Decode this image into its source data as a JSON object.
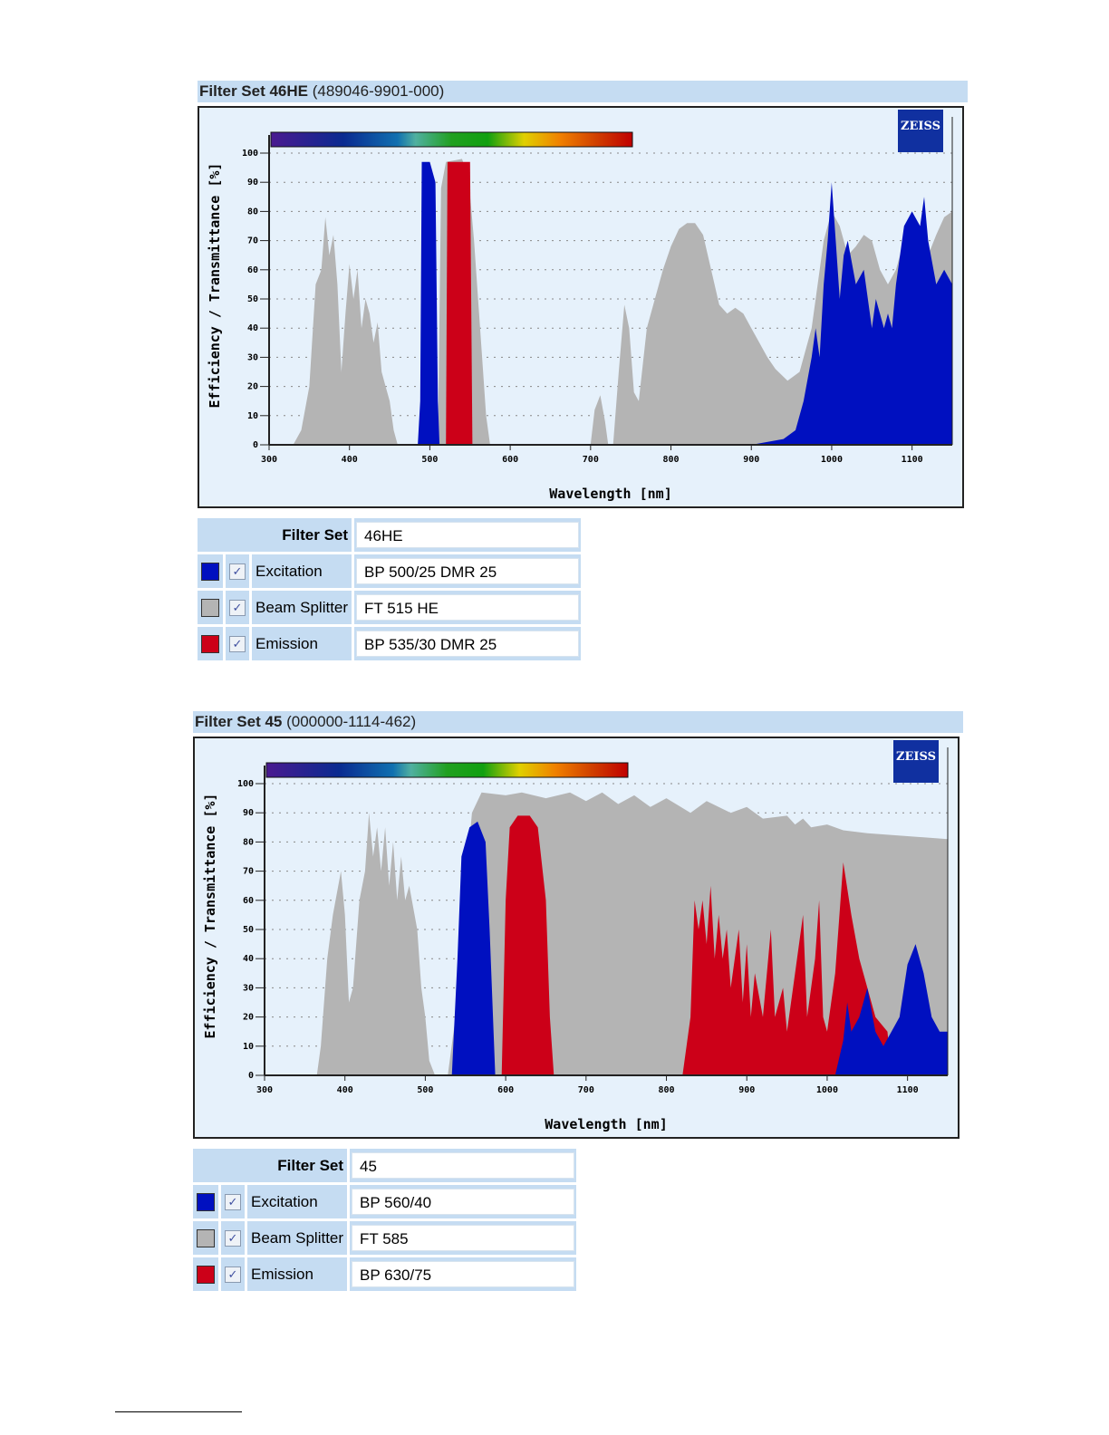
{
  "chart_data": [
    {
      "type": "area",
      "title_bold": "Filter Set 46HE",
      "title_rest": "(489046-9901-000)",
      "xlabel": "Wavelength [nm]",
      "ylabel": "Efficiency / Transmittance [%]",
      "xlim": [
        300,
        1150
      ],
      "ylim": [
        0,
        100
      ],
      "xticks": [
        300,
        400,
        500,
        600,
        700,
        800,
        900,
        1000,
        1100
      ],
      "yticks": [
        0,
        10,
        20,
        30,
        40,
        50,
        60,
        70,
        80,
        90,
        100
      ],
      "grid": true,
      "logo": "ZEISS",
      "series": [
        {
          "name": "Beam Splitter",
          "color": "#b4b4b4",
          "points": [
            [
              330,
              0
            ],
            [
              340,
              5
            ],
            [
              350,
              20
            ],
            [
              358,
              55
            ],
            [
              365,
              60
            ],
            [
              370,
              78
            ],
            [
              375,
              65
            ],
            [
              380,
              72
            ],
            [
              385,
              55
            ],
            [
              390,
              25
            ],
            [
              395,
              45
            ],
            [
              400,
              62
            ],
            [
              405,
              50
            ],
            [
              410,
              60
            ],
            [
              415,
              40
            ],
            [
              420,
              50
            ],
            [
              425,
              45
            ],
            [
              430,
              35
            ],
            [
              435,
              42
            ],
            [
              440,
              25
            ],
            [
              445,
              20
            ],
            [
              450,
              15
            ],
            [
              455,
              5
            ],
            [
              460,
              0
            ],
            [
              510,
              0
            ],
            [
              514,
              88
            ],
            [
              520,
              97
            ],
            [
              540,
              98
            ],
            [
              548,
              92
            ],
            [
              555,
              70
            ],
            [
              565,
              30
            ],
            [
              570,
              10
            ],
            [
              575,
              0
            ],
            [
              700,
              0
            ],
            [
              705,
              12
            ],
            [
              712,
              17
            ],
            [
              718,
              8
            ],
            [
              722,
              0
            ],
            [
              728,
              0
            ],
            [
              735,
              25
            ],
            [
              742,
              48
            ],
            [
              748,
              40
            ],
            [
              754,
              18
            ],
            [
              760,
              15
            ],
            [
              770,
              40
            ],
            [
              780,
              50
            ],
            [
              790,
              60
            ],
            [
              800,
              68
            ],
            [
              810,
              74
            ],
            [
              820,
              76
            ],
            [
              830,
              76
            ],
            [
              840,
              72
            ],
            [
              850,
              60
            ],
            [
              860,
              48
            ],
            [
              870,
              45
            ],
            [
              880,
              47
            ],
            [
              890,
              45
            ],
            [
              900,
              40
            ],
            [
              910,
              35
            ],
            [
              920,
              30
            ],
            [
              930,
              26
            ],
            [
              945,
              22
            ],
            [
              960,
              25
            ],
            [
              975,
              40
            ],
            [
              990,
              70
            ],
            [
              1000,
              80
            ],
            [
              1010,
              75
            ],
            [
              1020,
              65
            ],
            [
              1030,
              68
            ],
            [
              1040,
              72
            ],
            [
              1050,
              70
            ],
            [
              1060,
              60
            ],
            [
              1070,
              55
            ],
            [
              1080,
              60
            ],
            [
              1090,
              70
            ],
            [
              1100,
              70
            ],
            [
              1110,
              60
            ],
            [
              1120,
              65
            ],
            [
              1130,
              72
            ],
            [
              1140,
              78
            ],
            [
              1150,
              80
            ],
            [
              1150,
              0
            ]
          ]
        },
        {
          "name": "Emission",
          "color": "#cc0018",
          "points": [
            [
              520,
              0
            ],
            [
              522,
              97
            ],
            [
              550,
              97
            ],
            [
              553,
              0
            ]
          ]
        },
        {
          "name": "Excitation",
          "color": "#0010c0",
          "points": [
            [
              485,
              0
            ],
            [
              488,
              15
            ],
            [
              490,
              97
            ],
            [
              500,
              97
            ],
            [
              507,
              90
            ],
            [
              510,
              15
            ],
            [
              512,
              0
            ],
            [
              850,
              0
            ],
            [
              900,
              0
            ],
            [
              940,
              2
            ],
            [
              955,
              5
            ],
            [
              965,
              15
            ],
            [
              975,
              30
            ],
            [
              980,
              40
            ],
            [
              985,
              30
            ],
            [
              990,
              55
            ],
            [
              995,
              70
            ],
            [
              1000,
              90
            ],
            [
              1005,
              70
            ],
            [
              1010,
              50
            ],
            [
              1015,
              65
            ],
            [
              1020,
              70
            ],
            [
              1030,
              55
            ],
            [
              1040,
              60
            ],
            [
              1050,
              40
            ],
            [
              1055,
              50
            ],
            [
              1065,
              40
            ],
            [
              1070,
              45
            ],
            [
              1075,
              40
            ],
            [
              1080,
              55
            ],
            [
              1090,
              75
            ],
            [
              1100,
              80
            ],
            [
              1110,
              75
            ],
            [
              1115,
              85
            ],
            [
              1120,
              70
            ],
            [
              1130,
              55
            ],
            [
              1140,
              60
            ],
            [
              1150,
              55
            ],
            [
              1150,
              0
            ]
          ]
        }
      ],
      "table": {
        "filter_set_label": "Filter Set",
        "filter_set_value": "46HE",
        "rows": [
          {
            "label": "Excitation",
            "value": "BP 500/25 DMR 25",
            "color": "#0010c0",
            "checked": true
          },
          {
            "label": "Beam Splitter",
            "value": "FT 515 HE",
            "color": "#b4b4b4",
            "checked": true
          },
          {
            "label": "Emission",
            "value": "BP 535/30 DMR 25",
            "color": "#cc0018",
            "checked": true
          }
        ]
      }
    },
    {
      "type": "area",
      "title_bold": "Filter Set 45",
      "title_rest": "(000000-1114-462)",
      "xlabel": "Wavelength [nm]",
      "ylabel": "Efficiency / Transmittance [%]",
      "xlim": [
        300,
        1150
      ],
      "ylim": [
        0,
        100
      ],
      "xticks": [
        300,
        400,
        500,
        600,
        700,
        800,
        900,
        1000,
        1100
      ],
      "yticks": [
        0,
        10,
        20,
        30,
        40,
        50,
        60,
        70,
        80,
        90,
        100
      ],
      "grid": true,
      "logo": "ZEISS",
      "series": [
        {
          "name": "Beam Splitter",
          "color": "#b4b4b4",
          "points": [
            [
              365,
              0
            ],
            [
              370,
              10
            ],
            [
              378,
              40
            ],
            [
              385,
              55
            ],
            [
              395,
              70
            ],
            [
              400,
              55
            ],
            [
              405,
              25
            ],
            [
              410,
              30
            ],
            [
              418,
              60
            ],
            [
              425,
              70
            ],
            [
              430,
              90
            ],
            [
              435,
              75
            ],
            [
              440,
              85
            ],
            [
              445,
              70
            ],
            [
              450,
              85
            ],
            [
              455,
              65
            ],
            [
              460,
              80
            ],
            [
              465,
              60
            ],
            [
              470,
              75
            ],
            [
              475,
              60
            ],
            [
              480,
              65
            ],
            [
              490,
              50
            ],
            [
              495,
              30
            ],
            [
              500,
              20
            ],
            [
              505,
              5
            ],
            [
              512,
              0
            ],
            [
              528,
              0
            ],
            [
              540,
              25
            ],
            [
              550,
              65
            ],
            [
              558,
              90
            ],
            [
              570,
              97
            ],
            [
              600,
              96
            ],
            [
              620,
              97
            ],
            [
              650,
              95
            ],
            [
              680,
              97
            ],
            [
              700,
              94
            ],
            [
              720,
              97
            ],
            [
              740,
              93
            ],
            [
              760,
              96
            ],
            [
              780,
              92
            ],
            [
              800,
              95
            ],
            [
              830,
              90
            ],
            [
              850,
              94
            ],
            [
              880,
              90
            ],
            [
              900,
              92
            ],
            [
              920,
              88
            ],
            [
              950,
              89
            ],
            [
              960,
              86
            ],
            [
              970,
              88
            ],
            [
              980,
              85
            ],
            [
              1000,
              86
            ],
            [
              1020,
              84
            ],
            [
              1050,
              83
            ],
            [
              1100,
              82
            ],
            [
              1150,
              81
            ],
            [
              1150,
              0
            ]
          ]
        },
        {
          "name": "Emission",
          "color": "#cc0018",
          "points": [
            [
              595,
              0
            ],
            [
              600,
              60
            ],
            [
              605,
              85
            ],
            [
              615,
              89
            ],
            [
              630,
              89
            ],
            [
              640,
              85
            ],
            [
              650,
              60
            ],
            [
              655,
              20
            ],
            [
              660,
              0
            ],
            [
              820,
              0
            ],
            [
              830,
              20
            ],
            [
              835,
              60
            ],
            [
              840,
              50
            ],
            [
              845,
              60
            ],
            [
              850,
              45
            ],
            [
              855,
              65
            ],
            [
              860,
              40
            ],
            [
              865,
              55
            ],
            [
              870,
              40
            ],
            [
              875,
              50
            ],
            [
              880,
              30
            ],
            [
              890,
              50
            ],
            [
              895,
              25
            ],
            [
              900,
              45
            ],
            [
              905,
              20
            ],
            [
              910,
              35
            ],
            [
              920,
              20
            ],
            [
              930,
              50
            ],
            [
              935,
              20
            ],
            [
              945,
              30
            ],
            [
              950,
              15
            ],
            [
              960,
              35
            ],
            [
              970,
              55
            ],
            [
              975,
              20
            ],
            [
              985,
              40
            ],
            [
              990,
              60
            ],
            [
              995,
              20
            ],
            [
              1000,
              15
            ],
            [
              1010,
              35
            ],
            [
              1020,
              73
            ],
            [
              1030,
              55
            ],
            [
              1040,
              40
            ],
            [
              1050,
              30
            ],
            [
              1060,
              20
            ],
            [
              1075,
              15
            ],
            [
              1080,
              0
            ]
          ]
        },
        {
          "name": "Excitation",
          "color": "#0010c0",
          "points": [
            [
              533,
              0
            ],
            [
              540,
              40
            ],
            [
              545,
              75
            ],
            [
              555,
              85
            ],
            [
              565,
              87
            ],
            [
              575,
              80
            ],
            [
              580,
              50
            ],
            [
              587,
              0
            ],
            [
              1010,
              0
            ],
            [
              1020,
              12
            ],
            [
              1025,
              25
            ],
            [
              1030,
              15
            ],
            [
              1040,
              20
            ],
            [
              1050,
              30
            ],
            [
              1060,
              15
            ],
            [
              1070,
              10
            ],
            [
              1080,
              15
            ],
            [
              1090,
              20
            ],
            [
              1100,
              38
            ],
            [
              1110,
              45
            ],
            [
              1120,
              35
            ],
            [
              1130,
              20
            ],
            [
              1140,
              15
            ],
            [
              1150,
              15
            ],
            [
              1150,
              0
            ]
          ]
        }
      ],
      "table": {
        "filter_set_label": "Filter Set",
        "filter_set_value": "45",
        "rows": [
          {
            "label": "Excitation",
            "value": "BP 560/40",
            "color": "#0010c0",
            "checked": true
          },
          {
            "label": "Beam Splitter",
            "value": "FT 585",
            "color": "#b4b4b4",
            "checked": true
          },
          {
            "label": "Emission",
            "value": "BP 630/75",
            "color": "#cc0018",
            "checked": true
          }
        ]
      }
    }
  ]
}
